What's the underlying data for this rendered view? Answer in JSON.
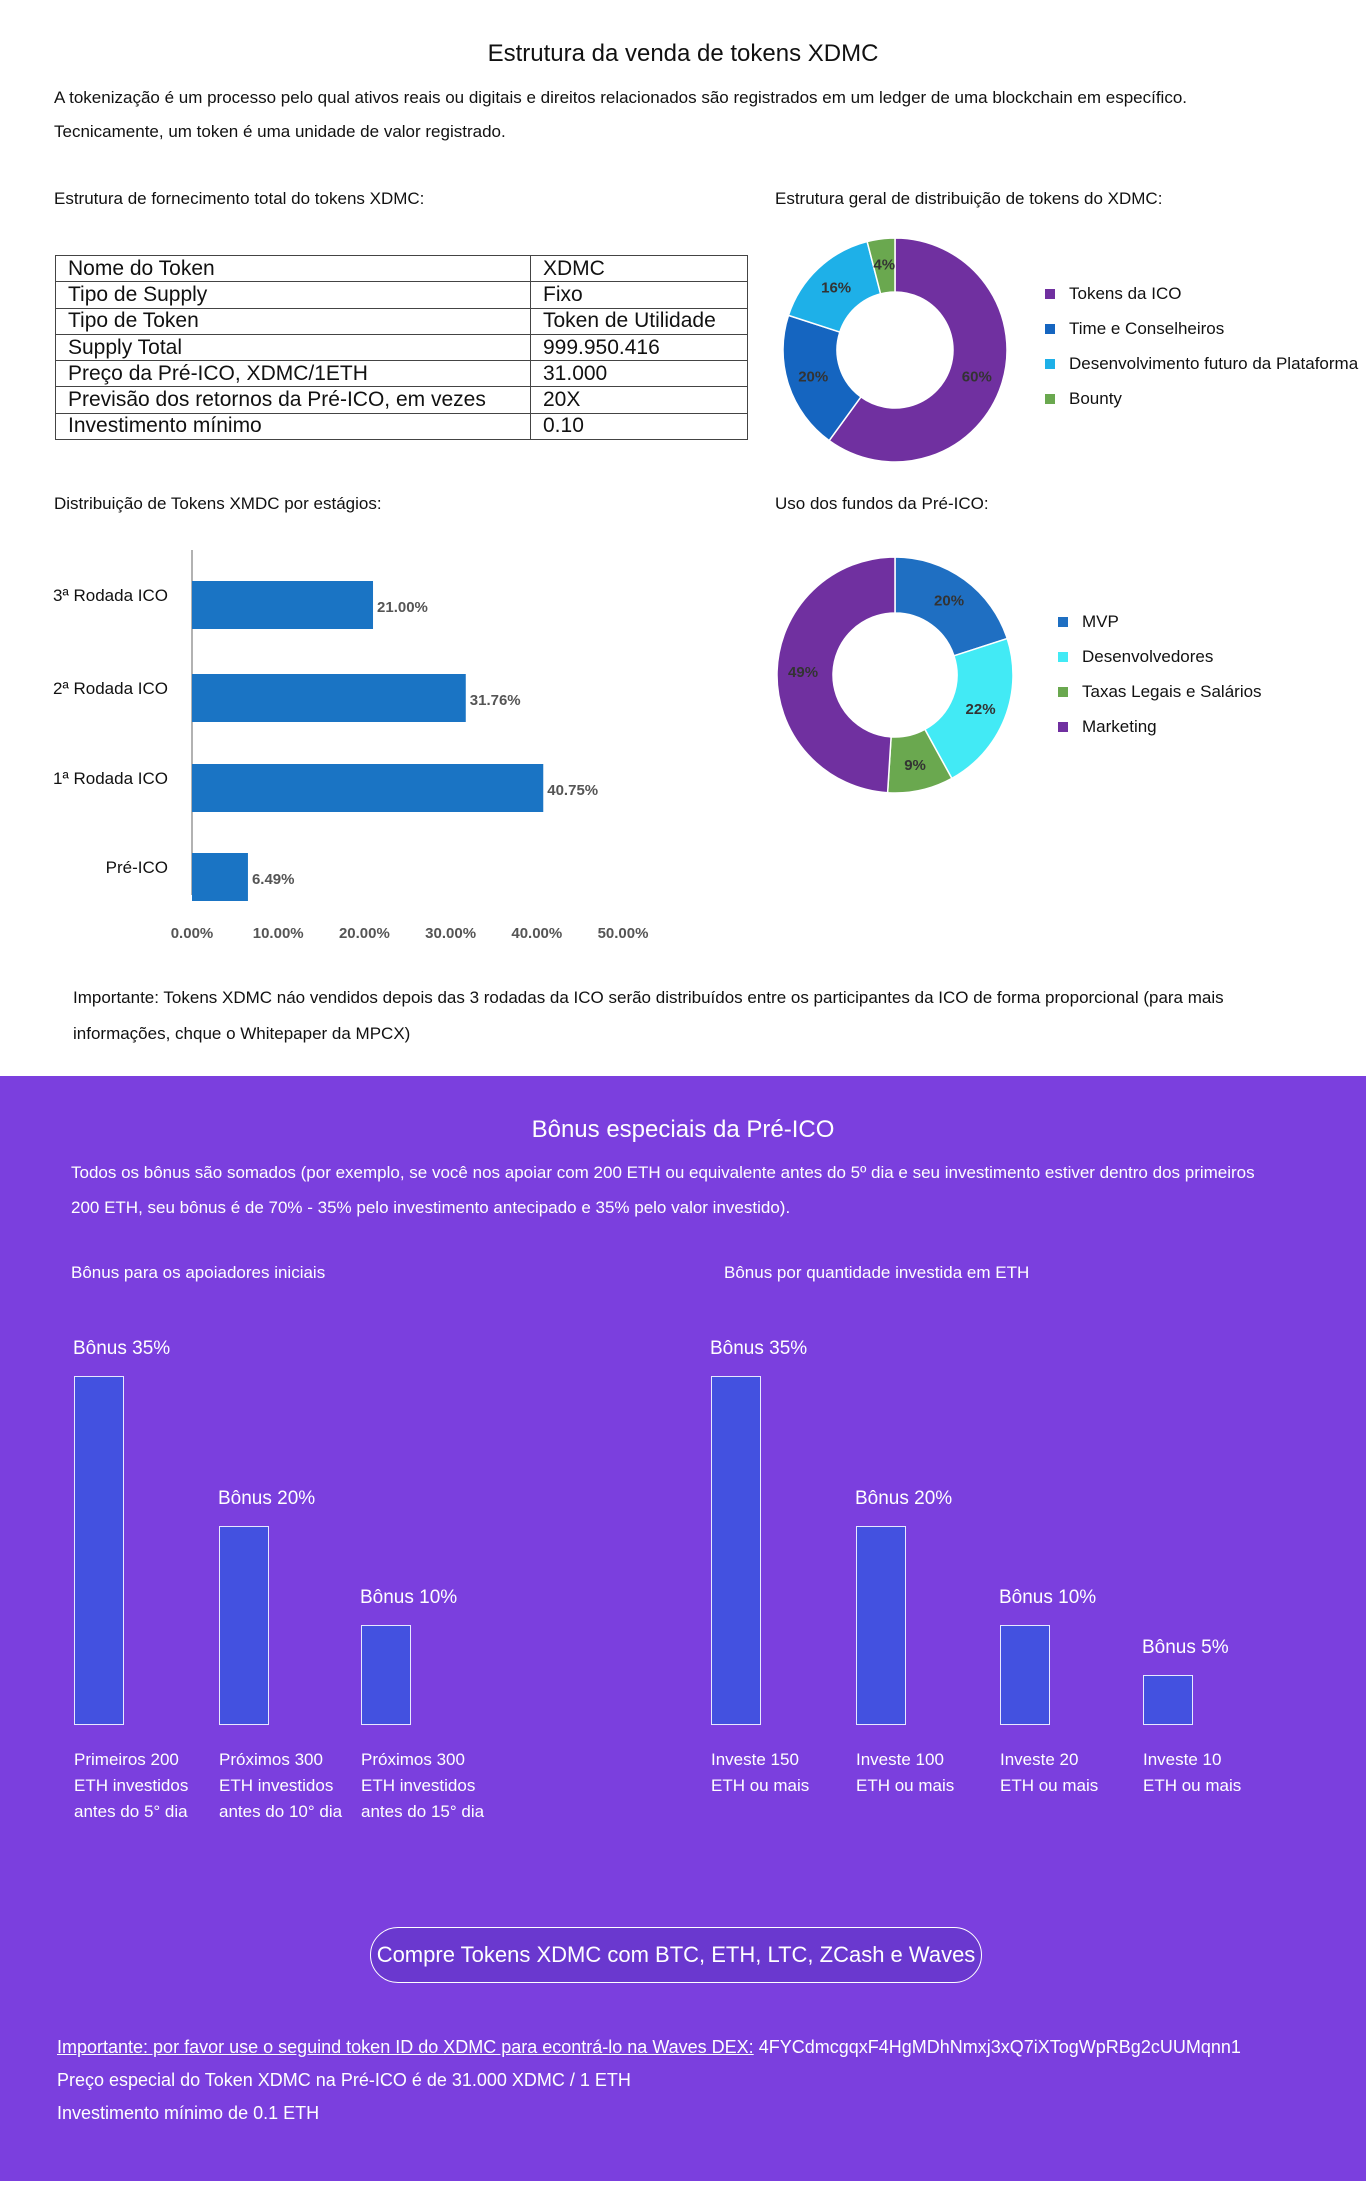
{
  "title": "Estrutura da venda de tokens XDMC",
  "intro": {
    "line1": "A tokenização é um processo pelo qual ativos reais ou digitais e direitos relacionados são registrados em um ledger de uma blockchain em específico.",
    "line2": "Tecnicamente, um token é uma unidade de valor registrado."
  },
  "supply_label": "Estrutura de fornecimento total do tokens XDMC:",
  "distribution_label": "Estrutura geral de distribuição de tokens do XDMC:",
  "token_table": [
    [
      "Nome do Token",
      "XDMC"
    ],
    [
      "Tipo de Supply",
      "Fixo"
    ],
    [
      "Tipo de Token",
      "Token de Utilidade"
    ],
    [
      "Supply Total",
      "999.950.416"
    ],
    [
      "Preço da Pré-ICO, XDMC/1ETH",
      "31.000"
    ],
    [
      "Previsão dos retornos da Pré-ICO, em vezes",
      "20X"
    ],
    [
      "Investimento mínimo",
      "0.10"
    ]
  ],
  "stages_label": "Distribuição de Tokens XMDC por estágios:",
  "funds_label": "Uso dos fundos da Pré-ICO:",
  "important_note": {
    "line1": "Importante: Tokens XDMC náo vendidos depois das 3 rodadas da ICO serão distribuídos entre os participantes da ICO de forma proporcional (para mais",
    "line2": "informações, chque o Whitepaper da MPCX)"
  },
  "chart_data": [
    {
      "type": "pie",
      "variant": "donut",
      "slices": [
        {
          "label": "Tokens da ICO",
          "value": 60,
          "display": "60%",
          "color": "#7030a0"
        },
        {
          "label": "Time e Conselheiros",
          "value": 20,
          "display": "20%",
          "color": "#1565c0"
        },
        {
          "label": "Desenvolvimento futuro da Plataforma",
          "value": 16,
          "display": "16%",
          "color": "#1eb0e8"
        },
        {
          "label": "Bounty",
          "value": 4,
          "display": "4%",
          "color": "#6aa84f"
        }
      ],
      "legend_position": "right"
    },
    {
      "type": "bar",
      "orientation": "horizontal",
      "categories": [
        "3ª Rodada ICO",
        "2ª Rodada ICO",
        "1ª Rodada ICO",
        "Pré-ICO"
      ],
      "values": [
        21.0,
        31.76,
        40.75,
        6.49
      ],
      "value_labels": [
        "21.00%",
        "31.76%",
        "40.75%",
        "6.49%"
      ],
      "xlim": [
        0,
        50
      ],
      "ticks": [
        "0.00%",
        "10.00%",
        "20.00%",
        "30.00%",
        "40.00%",
        "50.00%"
      ],
      "color": "#1a74c4"
    },
    {
      "type": "pie",
      "variant": "donut",
      "slices": [
        {
          "label": "MVP",
          "value": 20,
          "display": "20%",
          "color": "#1f6fc2"
        },
        {
          "label": "Desenvolvedores",
          "value": 22,
          "display": "22%",
          "color": "#42eaf5"
        },
        {
          "label": "Taxas Legais e Salários",
          "value": 9,
          "display": "9%",
          "color": "#6aa84f"
        },
        {
          "label": "Marketing",
          "value": 49,
          "display": "49%",
          "color": "#7030a0"
        }
      ],
      "legend_position": "right"
    },
    {
      "type": "bar",
      "values": [
        35,
        20,
        10
      ],
      "value_labels": [
        "Bônus 35%",
        "Bônus 20%",
        "Bônus 10%"
      ],
      "categories": [
        [
          "Primeiros 200",
          "ETH investidos",
          "antes do 5° dia"
        ],
        [
          "Próximos 300",
          "ETH investidos",
          "antes do 10° dia"
        ],
        [
          "Próximos 300",
          "ETH investidos",
          "antes do 15° dia"
        ]
      ]
    },
    {
      "type": "bar",
      "values": [
        35,
        20,
        10,
        5
      ],
      "value_labels": [
        "Bônus 35%",
        "Bônus 20%",
        "Bônus 10%",
        "Bônus 5%"
      ],
      "categories": [
        [
          "Investe 150",
          "ETH ou mais"
        ],
        [
          "Investe 100",
          "ETH ou mais"
        ],
        [
          "Investe 20",
          "ETH ou mais"
        ],
        [
          "Investe 10",
          "ETH ou mais"
        ]
      ]
    }
  ],
  "bonus": {
    "title": "Bônus especiais da Pré-ICO",
    "intro1": "Todos os bônus são somados (por exemplo, se você nos apoiar com 200 ETH ou equivalente antes do 5º dia e seu investimento estiver dentro dos primeiros",
    "intro2": "200 ETH, seu bônus é de 70% - 35% pelo investimento antecipado e 35% pelo valor investido).",
    "early_label": "Bônus para os apoiadores iniciais",
    "amount_label": "Bônus por quantidade investida em ETH"
  },
  "cta": "Compre Tokens XDMC com BTC, ETH, LTC, ZCash e Waves",
  "footer": {
    "important": "Importante: por favor use o seguind token ID do XDMC para econtrá-lo na Waves DEX:",
    "token_id": "4FYCdmcgqxF4HgMDhNmxj3xQ7iXTogWpRBg2cUUMqnn1",
    "price": "Preço especial do Token XDMC na Pré-ICO é de 31.000 XDMC / 1 ETH",
    "min": "Investimento mínimo de 0.1 ETH"
  }
}
